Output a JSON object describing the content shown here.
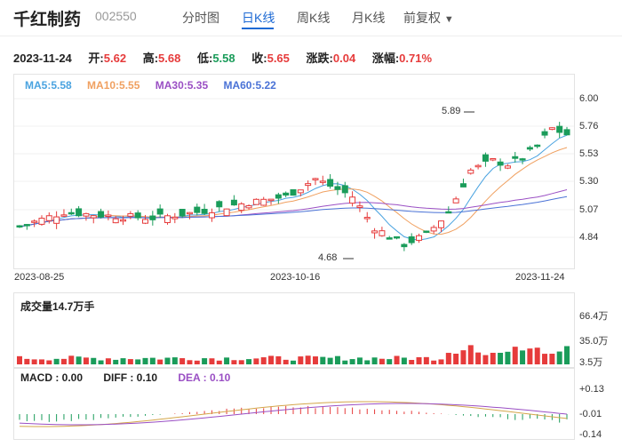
{
  "header": {
    "name": "千红制药",
    "code": "002550",
    "tabs": [
      "分时图",
      "日K线",
      "周K线",
      "月K线"
    ],
    "active_tab": "日K线",
    "adjust_label": "前复权",
    "adjust_arrow": "▼"
  },
  "quote": {
    "date": "2023-11-24",
    "open_label": "开:",
    "open": "5.62",
    "high_label": "高:",
    "high": "5.68",
    "low_label": "低:",
    "low": "5.58",
    "close_label": "收:",
    "close": "5.65",
    "change_label": "涨跌:",
    "change": "0.04",
    "pct_label": "涨幅:",
    "pct": "0.71%"
  },
  "ma_legend": {
    "ma5": "MA5:5.58",
    "ma10": "MA10:5.55",
    "ma30": "MA30:5.35",
    "ma60": "MA60:5.22",
    "colors": {
      "ma5": "#4aa3e0",
      "ma10": "#f0a060",
      "ma30": "#9a4fc4",
      "ma60": "#4a72d6"
    }
  },
  "price_axis": [
    "6.00",
    "5.76",
    "5.53",
    "5.30",
    "5.07",
    "4.84"
  ],
  "date_axis": [
    "2023-08-25",
    "2023-10-16",
    "2023-11-24"
  ],
  "annotations": {
    "max": "5.89",
    "min": "4.68"
  },
  "volume": {
    "title": "成交量14.7万手",
    "axis": [
      "66.4万",
      "35.0万",
      "3.5万"
    ]
  },
  "macd": {
    "macd": "MACD : 0.00",
    "diff": "DIFF : 0.10",
    "dea": "DEA : 0.10",
    "axis": [
      "+0.13",
      "-0.01",
      "-0.14"
    ],
    "colors": {
      "macd": "#222222",
      "diff": "#222222",
      "dea": "#9a4fc4"
    }
  },
  "colors": {
    "up": "#e63b3b",
    "down": "#1a9c5a",
    "accent": "#1e6ad4"
  }
}
